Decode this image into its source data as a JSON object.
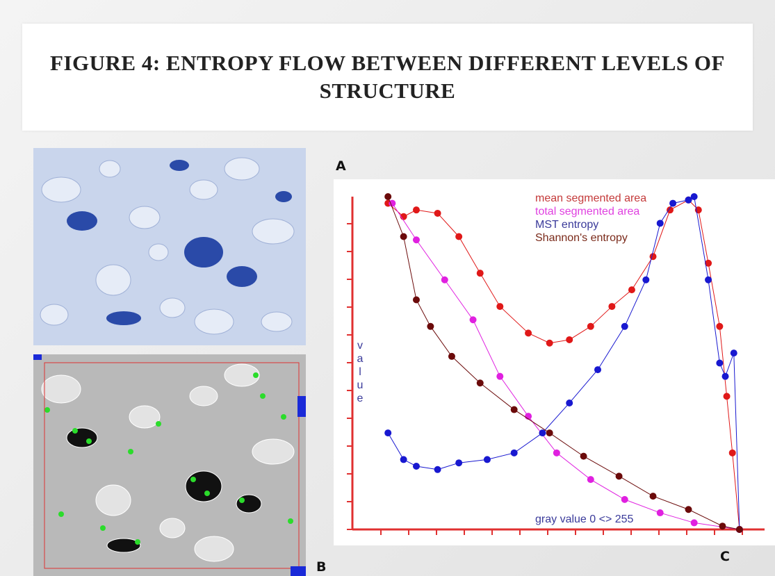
{
  "header": {
    "title": "FIGURE 4: ENTROPY FLOW BETWEEN DIFFERENT LEVELS OF STRUCTURE"
  },
  "panel_labels": {
    "a": "A",
    "b": "B",
    "c": "C"
  },
  "chart_data": {
    "type": "line",
    "x_label": "gray value 0 <> 255",
    "y_label": "value",
    "xlim": [
      0,
      255
    ],
    "ylim": [
      0,
      100
    ],
    "legend": "top-right",
    "series": [
      {
        "name": "mean segmented area",
        "color": "#e01818",
        "legend_color": "#c43a3a",
        "x": [
          5,
          16,
          25,
          40,
          55,
          70,
          84,
          104,
          119,
          133,
          148,
          163,
          177,
          192,
          204,
          217,
          224,
          231,
          239,
          244,
          248,
          253
        ],
        "values": [
          98,
          94,
          96,
          95,
          88,
          77,
          67,
          59,
          56,
          57,
          61,
          67,
          72,
          82,
          96,
          99,
          96,
          80,
          61,
          40,
          23,
          0
        ]
      },
      {
        "name": "total segmented area",
        "color": "#e020e0",
        "legend_color": "#e040e0",
        "x": [
          8,
          25,
          45,
          65,
          84,
          104,
          124,
          148,
          172,
          197,
          221,
          253
        ],
        "values": [
          98,
          87,
          75,
          63,
          46,
          34,
          23,
          15,
          9,
          5,
          2,
          0
        ]
      },
      {
        "name": "MST entropy",
        "color": "#1818d0",
        "legend_color": "#3a3a9a",
        "x": [
          5,
          16,
          25,
          40,
          55,
          75,
          94,
          114,
          133,
          153,
          172,
          187,
          197,
          206,
          217,
          221,
          231,
          239,
          243,
          249,
          253
        ],
        "values": [
          29,
          21,
          19,
          18,
          20,
          21,
          23,
          29,
          38,
          48,
          61,
          75,
          92,
          98,
          99,
          100,
          75,
          50,
          46,
          53,
          0
        ]
      },
      {
        "name": "Shannon's entropy",
        "color": "#6b0a0a",
        "legend_color": "#7a2a1a",
        "x": [
          5,
          16,
          25,
          35,
          50,
          70,
          94,
          119,
          143,
          168,
          192,
          217,
          241,
          253
        ],
        "values": [
          100,
          88,
          69,
          61,
          52,
          44,
          36,
          29,
          22,
          16,
          10,
          6,
          1,
          0
        ]
      }
    ]
  }
}
